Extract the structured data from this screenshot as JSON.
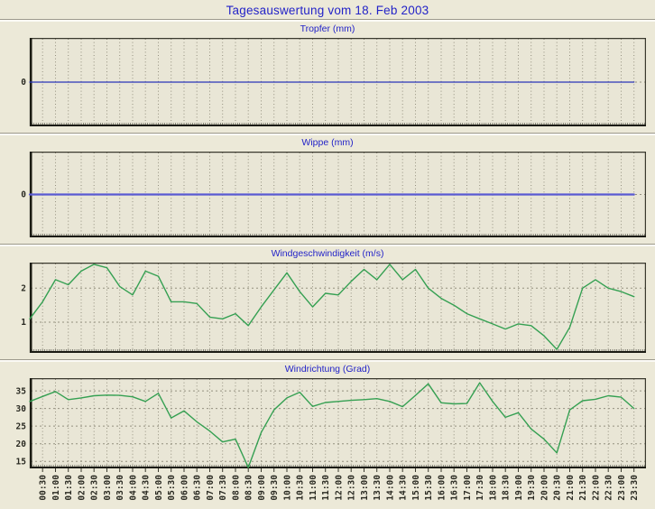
{
  "page": {
    "title": "Tagesauswertung vom 18. Feb 2003"
  },
  "colors": {
    "background": "#ece9d8",
    "plot_background": "#e9e6d6",
    "title_blue": "#2323c8",
    "grid": "#94907f",
    "axis_dark": "#1b1b13",
    "axis_light": "#3a392e",
    "minor_tick": "#55544a",
    "tick_label": "#2a2a22"
  },
  "x_start": "00:00",
  "x_step_minutes": 30,
  "x_labels": [
    "00:30",
    "01:00",
    "01:30",
    "02:00",
    "02:30",
    "03:00",
    "03:30",
    "04:00",
    "04:30",
    "05:00",
    "05:30",
    "06:00",
    "06:30",
    "07:00",
    "07:30",
    "08:00",
    "08:30",
    "09:00",
    "09:30",
    "10:00",
    "10:30",
    "11:00",
    "11:30",
    "12:00",
    "12:30",
    "13:00",
    "13:30",
    "14:00",
    "14:30",
    "15:00",
    "15:30",
    "16:00",
    "16:30",
    "17:00",
    "17:30",
    "18:00",
    "18:30",
    "19:00",
    "19:30",
    "20:00",
    "20:30",
    "21:00",
    "21:30",
    "22:00",
    "22:30",
    "23:00",
    "23:30"
  ],
  "chart_data": [
    {
      "type": "line",
      "title": "Tropfer (mm)",
      "line_color": "#2a35b8",
      "line_width": 1.3,
      "yticks": [
        0
      ],
      "ylim": [
        -1,
        1
      ],
      "grid": true,
      "values": [
        0,
        0,
        0,
        0,
        0,
        0,
        0,
        0,
        0,
        0,
        0,
        0,
        0,
        0,
        0,
        0,
        0,
        0,
        0,
        0,
        0,
        0,
        0,
        0,
        0,
        0,
        0,
        0,
        0,
        0,
        0,
        0,
        0,
        0,
        0,
        0,
        0,
        0,
        0,
        0,
        0,
        0,
        0,
        0,
        0,
        0,
        0,
        0
      ]
    },
    {
      "type": "line",
      "title": "Wippe (mm)",
      "line_color": "#5a5ad2",
      "line_width": 2.2,
      "yticks": [
        0
      ],
      "ylim": [
        -1,
        1
      ],
      "grid": true,
      "values": [
        0,
        0,
        0,
        0,
        0,
        0,
        0,
        0,
        0,
        0,
        0,
        0,
        0,
        0,
        0,
        0,
        0,
        0,
        0,
        0,
        0,
        0,
        0,
        0,
        0,
        0,
        0,
        0,
        0,
        0,
        0,
        0,
        0,
        0,
        0,
        0,
        0,
        0,
        0,
        0,
        0,
        0,
        0,
        0,
        0,
        0,
        0,
        0
      ]
    },
    {
      "type": "line",
      "title": "Windgeschwindigkeit (m/s)",
      "line_color": "#35a052",
      "line_width": 1.4,
      "yticks": [
        1,
        2
      ],
      "ylim": [
        0.1,
        2.75
      ],
      "grid": true,
      "values": [
        1.1,
        1.6,
        2.25,
        2.1,
        2.5,
        2.7,
        2.6,
        2.05,
        1.8,
        2.5,
        2.35,
        1.6,
        1.6,
        1.55,
        1.15,
        1.1,
        1.25,
        0.9,
        1.45,
        1.95,
        2.45,
        1.9,
        1.45,
        1.85,
        1.8,
        2.2,
        2.55,
        2.25,
        2.7,
        2.25,
        2.55,
        2.0,
        1.7,
        1.5,
        1.25,
        1.1,
        0.95,
        0.8,
        0.95,
        0.9,
        0.6,
        0.2,
        0.85,
        2.0,
        2.25,
        2.0,
        1.9,
        1.75
      ]
    },
    {
      "type": "line",
      "title": "Windrichtung (Grad)",
      "line_color": "#35a052",
      "line_width": 1.4,
      "yticks": [
        15,
        20,
        25,
        30,
        35
      ],
      "ylim": [
        13,
        38.6
      ],
      "grid": true,
      "values": [
        32,
        33.4,
        34.8,
        32.5,
        33,
        33.6,
        33.8,
        33.7,
        33.3,
        32,
        34.3,
        27.3,
        29.3,
        26.2,
        23.6,
        20.5,
        21.3,
        13.2,
        23.2,
        29.6,
        33,
        34.6,
        30.6,
        31.7,
        32,
        32.3,
        32.5,
        32.8,
        32,
        30.5,
        33.7,
        37,
        31.6,
        31.3,
        31.4,
        37.3,
        32,
        27.5,
        28.8,
        24.2,
        21.3,
        17.4,
        29.6,
        32.2,
        32.6,
        33.6,
        33.2,
        30
      ]
    }
  ]
}
